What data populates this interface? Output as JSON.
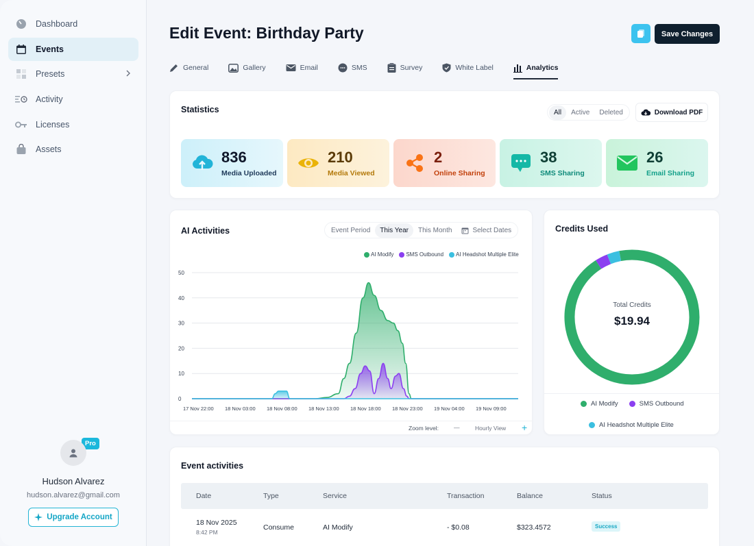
{
  "sidebar": {
    "items": [
      {
        "label": "Dashboard"
      },
      {
        "label": "Events"
      },
      {
        "label": "Presets"
      },
      {
        "label": "Activity"
      },
      {
        "label": "Licenses"
      },
      {
        "label": "Assets"
      }
    ],
    "active_item": "Events",
    "profile": {
      "badge": "Pro",
      "name": "Hudson Alvarez",
      "email": "hudson.alvarez@gmail.com",
      "upgrade_label": "Upgrade Account"
    }
  },
  "header": {
    "title": "Edit Event: Birthday Party",
    "save_label": "Save Changes"
  },
  "tabs": [
    {
      "label": "General",
      "icon": "pencil-icon"
    },
    {
      "label": "Gallery",
      "icon": "image-icon"
    },
    {
      "label": "Email",
      "icon": "mail-icon"
    },
    {
      "label": "SMS",
      "icon": "chat-icon"
    },
    {
      "label": "Survey",
      "icon": "clipboard-icon"
    },
    {
      "label": "White Label",
      "icon": "shield-icon"
    },
    {
      "label": "Analytics",
      "icon": "bar-chart-icon"
    }
  ],
  "active_tab": "Analytics",
  "statistics": {
    "title": "Statistics",
    "filters": [
      "All",
      "Active",
      "Deleted"
    ],
    "active_filter": "All",
    "download_label": "Download PDF",
    "cards": [
      {
        "value": "836",
        "label": "Media Uploaded",
        "icon": "cloud-upload-icon",
        "color": "#0ea5c6"
      },
      {
        "value": "210",
        "label": "Media Viewed",
        "icon": "eye-icon",
        "color": "#eab308"
      },
      {
        "value": "2",
        "label": "Online Sharing",
        "icon": "share-icon",
        "color": "#f97316"
      },
      {
        "value": "38",
        "label": "SMS Sharing",
        "icon": "chat-bubble-icon",
        "color": "#14b8a6"
      },
      {
        "value": "26",
        "label": "Email Sharing",
        "icon": "envelope-icon",
        "color": "#22c55e"
      }
    ]
  },
  "ai_activities": {
    "title": "AI Activities",
    "filters": [
      "Event Period",
      "This Year",
      "This Month"
    ],
    "active_filter": "This Year",
    "select_dates_label": "Select Dates",
    "zoom_label": "Zoom level:",
    "zoom_minus": "—",
    "zoom_view": "Hourly View",
    "zoom_plus": "+"
  },
  "chart_data": {
    "type": "area",
    "x_tick_labels": [
      "17 Nov 22:00",
      "18 Nov 03:00",
      "18 Nov 08:00",
      "18 Nov 13:00",
      "18 Nov 18:00",
      "18 Nov 23:00",
      "19 Nov 04:00",
      "19 Nov 09:00"
    ],
    "y_ticks": [
      0,
      10,
      20,
      30,
      40,
      50
    ],
    "ylim": [
      0,
      50
    ],
    "legend_position": "top-right",
    "grid": true,
    "series": [
      {
        "name": "AI Modify",
        "color": "#2fae6c",
        "points": [
          [
            0,
            0
          ],
          [
            11,
            0
          ],
          [
            12,
            0.5
          ],
          [
            13,
            2
          ],
          [
            13.5,
            8
          ],
          [
            14,
            14
          ],
          [
            14.6,
            26
          ],
          [
            15.2,
            40
          ],
          [
            15.7,
            46
          ],
          [
            16.2,
            41
          ],
          [
            16.8,
            35
          ],
          [
            17.4,
            31
          ],
          [
            17.9,
            30
          ],
          [
            18.3,
            27
          ],
          [
            18.7,
            22
          ],
          [
            19.0,
            14
          ],
          [
            19.3,
            2
          ],
          [
            19.5,
            0
          ],
          [
            29,
            0
          ]
        ]
      },
      {
        "name": "SMS Outbound",
        "color": "#8b3ff0",
        "points": [
          [
            0,
            0
          ],
          [
            13.5,
            0
          ],
          [
            14,
            1
          ],
          [
            14.5,
            4
          ],
          [
            15.0,
            10
          ],
          [
            15.4,
            13
          ],
          [
            15.8,
            11
          ],
          [
            16.2,
            2
          ],
          [
            16.6,
            8
          ],
          [
            17.0,
            14
          ],
          [
            17.4,
            8
          ],
          [
            17.7,
            4
          ],
          [
            18.1,
            9
          ],
          [
            18.4,
            10
          ],
          [
            18.8,
            4
          ],
          [
            19.1,
            1
          ],
          [
            19.3,
            0
          ],
          [
            29,
            0
          ]
        ]
      },
      {
        "name": "AI Headshot Multiple Elite",
        "color": "#3bbfe0",
        "points": [
          [
            0,
            0
          ],
          [
            7.1,
            0
          ],
          [
            7.4,
            2
          ],
          [
            7.7,
            3
          ],
          [
            8.1,
            3
          ],
          [
            8.4,
            3
          ],
          [
            8.7,
            0
          ],
          [
            29,
            0
          ]
        ]
      }
    ]
  },
  "credits": {
    "title": "Credits Used",
    "center_label": "Total Credits",
    "center_value": "$19.94",
    "chart_data": {
      "type": "pie",
      "categories": [
        "AI Modify",
        "SMS Outbound",
        "AI Headshot Multiple Elite"
      ],
      "values": [
        94,
        3,
        3
      ],
      "colors": [
        "#2fae6c",
        "#8b3ff0",
        "#3bbfe0"
      ]
    }
  },
  "event_activities": {
    "title": "Event activities",
    "columns": [
      "Date",
      "Type",
      "Service",
      "Transaction",
      "Balance",
      "Status"
    ],
    "rows": [
      {
        "date": "18 Nov 2025",
        "time": "8:42 PM",
        "type": "Consume",
        "service": "AI Modify",
        "transaction": "- $0.08",
        "balance": "$323.4572",
        "status": "Success"
      }
    ]
  }
}
